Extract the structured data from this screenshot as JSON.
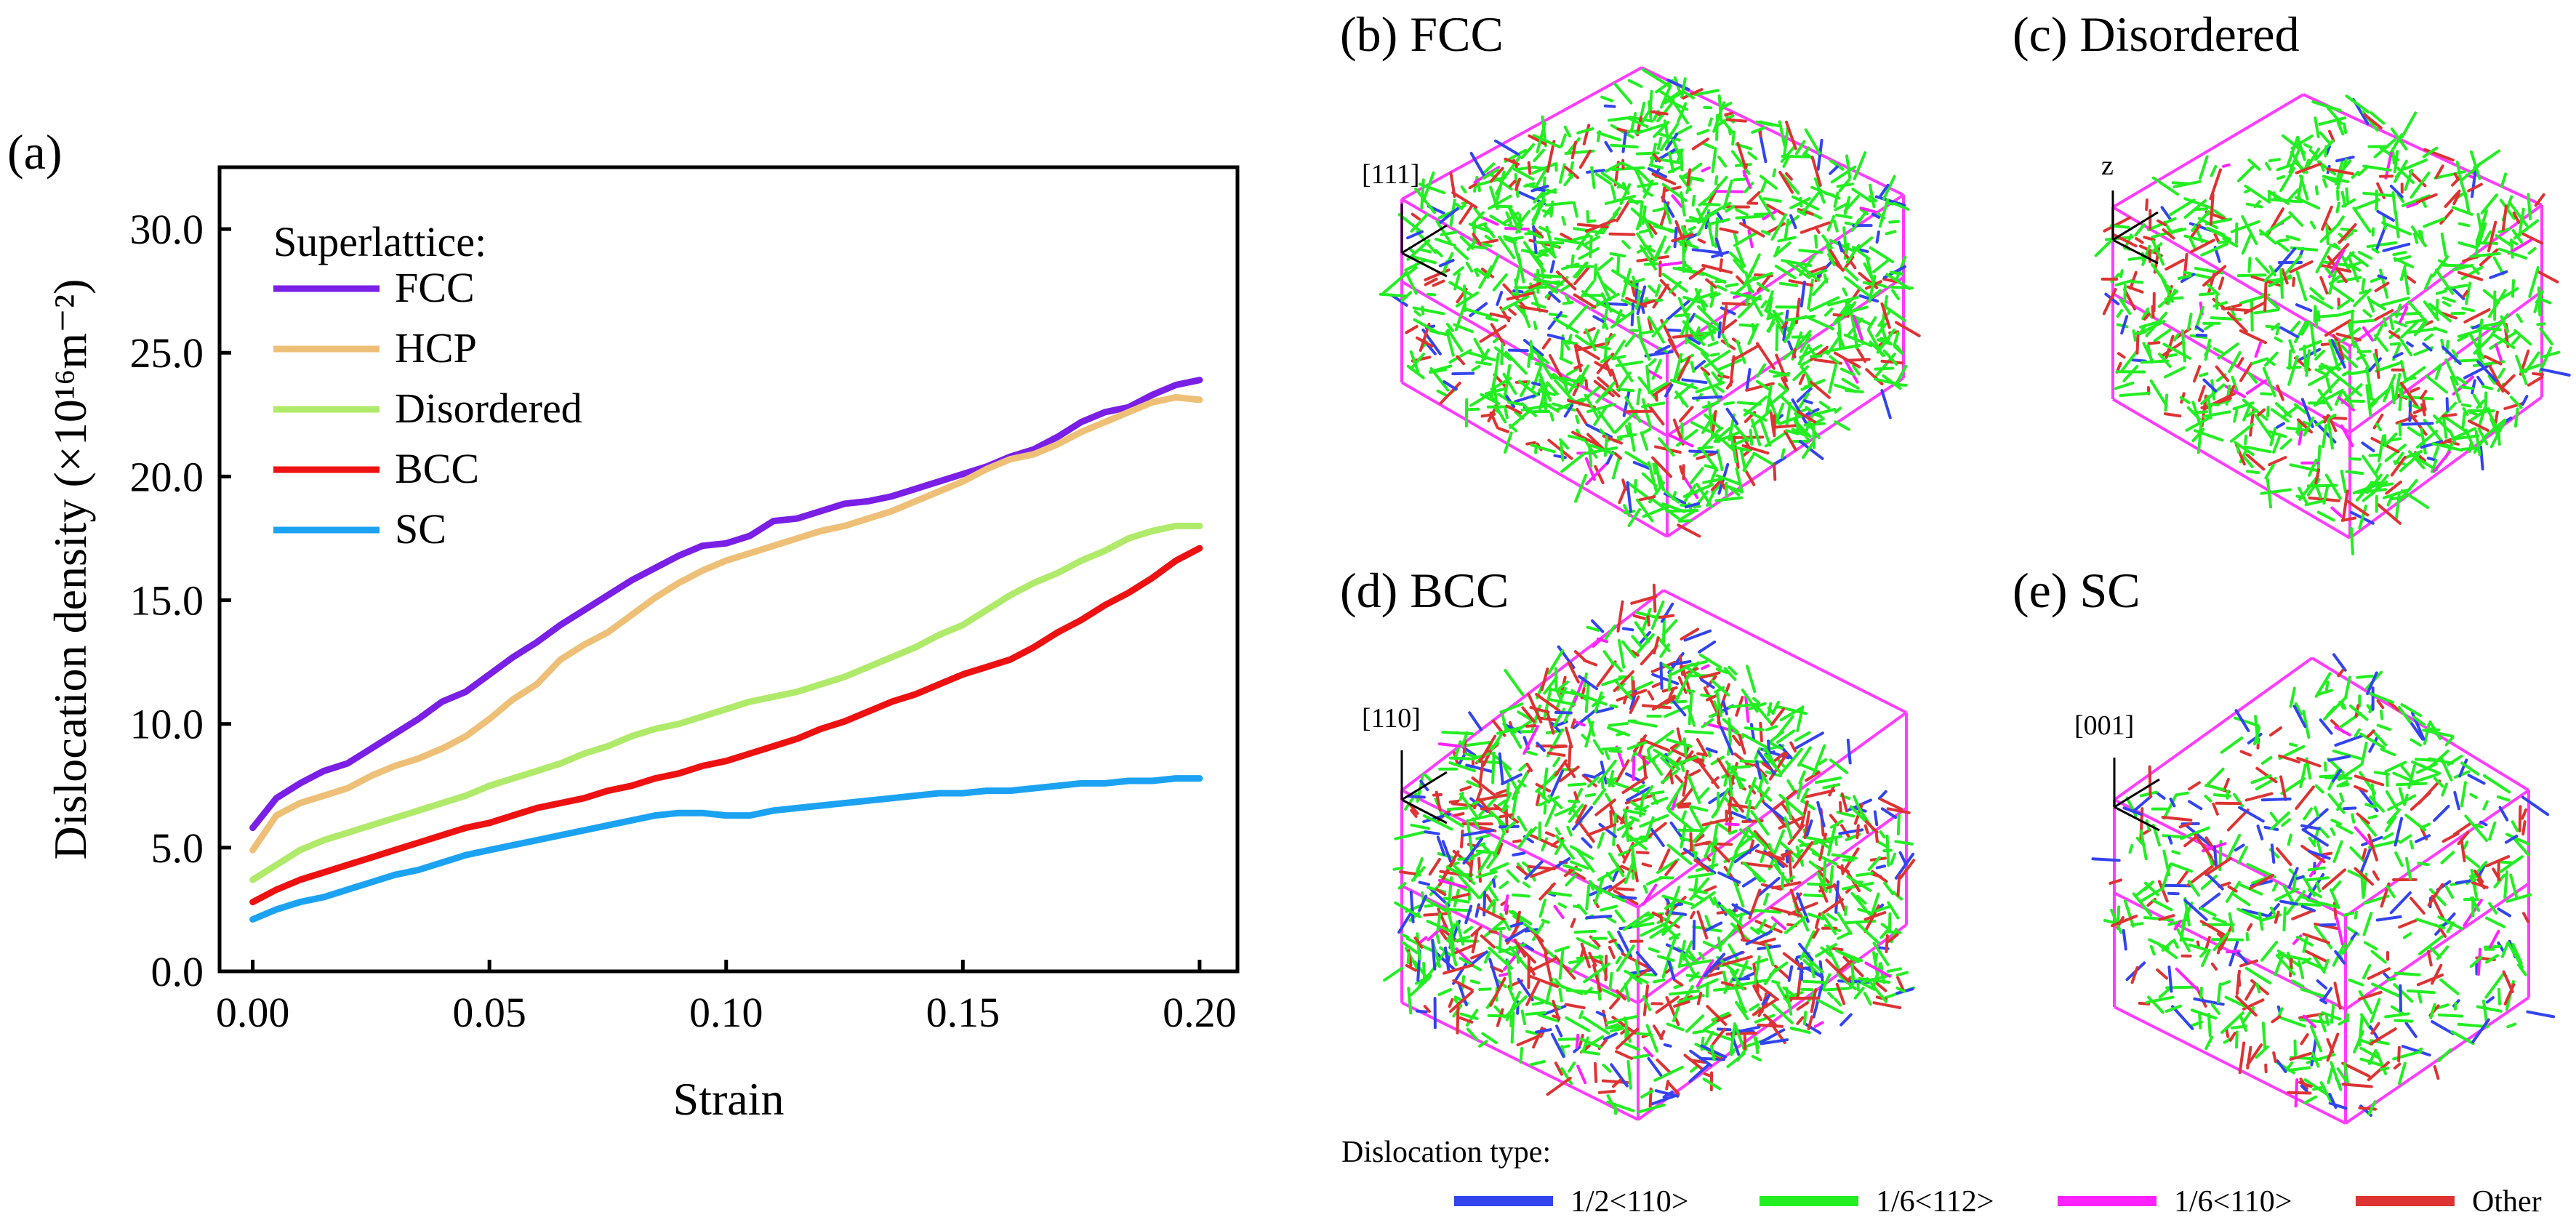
{
  "chart_data": {
    "type": "line",
    "panel_label": "(a)",
    "xlabel": "Strain",
    "ylabel": "Dislocation density (×10¹⁶m⁻²)",
    "xlim": [
      -0.007,
      0.208
    ],
    "ylim": [
      0,
      32.5
    ],
    "xticks": [
      0.0,
      0.05,
      0.1,
      0.15,
      0.2
    ],
    "xtick_labels": [
      "0.00",
      "0.05",
      "0.10",
      "0.15",
      "0.20"
    ],
    "yticks": [
      0,
      5,
      10,
      15,
      20,
      25,
      30
    ],
    "ytick_labels": [
      "0.0",
      "5.0",
      "10.0",
      "15.0",
      "20.0",
      "25.0",
      "30.0"
    ],
    "legend_title": "Superlattice:",
    "legend_position": "top-left",
    "x": [
      0.0,
      0.005,
      0.01,
      0.015,
      0.02,
      0.025,
      0.03,
      0.035,
      0.04,
      0.045,
      0.05,
      0.055,
      0.06,
      0.065,
      0.07,
      0.075,
      0.08,
      0.085,
      0.09,
      0.095,
      0.1,
      0.105,
      0.11,
      0.115,
      0.12,
      0.125,
      0.13,
      0.135,
      0.14,
      0.145,
      0.15,
      0.155,
      0.16,
      0.165,
      0.17,
      0.175,
      0.18,
      0.185,
      0.19,
      0.195,
      0.2
    ],
    "series": [
      {
        "name": "FCC",
        "color": "#7a1fe6",
        "values": [
          5.8,
          7.0,
          7.6,
          8.1,
          8.4,
          9.0,
          9.6,
          10.2,
          10.9,
          11.3,
          12.0,
          12.7,
          13.3,
          14.0,
          14.6,
          15.2,
          15.8,
          16.3,
          16.8,
          17.2,
          17.3,
          17.6,
          18.2,
          18.3,
          18.6,
          18.9,
          19.0,
          19.2,
          19.5,
          19.8,
          20.1,
          20.4,
          20.8,
          21.1,
          21.6,
          22.2,
          22.6,
          22.8,
          23.3,
          23.7,
          23.9
        ]
      },
      {
        "name": "HCP",
        "color": "#eec077",
        "values": [
          4.9,
          6.3,
          6.8,
          7.1,
          7.4,
          7.9,
          8.3,
          8.6,
          9.0,
          9.5,
          10.2,
          11.0,
          11.6,
          12.6,
          13.2,
          13.7,
          14.4,
          15.1,
          15.7,
          16.2,
          16.6,
          16.9,
          17.2,
          17.5,
          17.8,
          18.0,
          18.3,
          18.6,
          19.0,
          19.4,
          19.8,
          20.3,
          20.7,
          20.9,
          21.3,
          21.8,
          22.2,
          22.6,
          23.0,
          23.2,
          23.1
        ]
      },
      {
        "name": "Disordered",
        "color": "#b0ea6a",
        "values": [
          3.7,
          4.3,
          4.9,
          5.3,
          5.6,
          5.9,
          6.2,
          6.5,
          6.8,
          7.1,
          7.5,
          7.8,
          8.1,
          8.4,
          8.8,
          9.1,
          9.5,
          9.8,
          10.0,
          10.3,
          10.6,
          10.9,
          11.1,
          11.3,
          11.6,
          11.9,
          12.3,
          12.7,
          13.1,
          13.6,
          14.0,
          14.6,
          15.2,
          15.7,
          16.1,
          16.6,
          17.0,
          17.5,
          17.8,
          18.0,
          18.0
        ]
      },
      {
        "name": "BCC",
        "color": "#ee1111",
        "values": [
          2.8,
          3.3,
          3.7,
          4.0,
          4.3,
          4.6,
          4.9,
          5.2,
          5.5,
          5.8,
          6.0,
          6.3,
          6.6,
          6.8,
          7.0,
          7.3,
          7.5,
          7.8,
          8.0,
          8.3,
          8.5,
          8.8,
          9.1,
          9.4,
          9.8,
          10.1,
          10.5,
          10.9,
          11.2,
          11.6,
          12.0,
          12.3,
          12.6,
          13.1,
          13.7,
          14.2,
          14.8,
          15.3,
          15.9,
          16.6,
          17.1
        ]
      },
      {
        "name": "SC",
        "color": "#1ca2f3",
        "values": [
          2.1,
          2.5,
          2.8,
          3.0,
          3.3,
          3.6,
          3.9,
          4.1,
          4.4,
          4.7,
          4.9,
          5.1,
          5.3,
          5.5,
          5.7,
          5.9,
          6.1,
          6.3,
          6.4,
          6.4,
          6.3,
          6.3,
          6.5,
          6.6,
          6.7,
          6.8,
          6.9,
          7.0,
          7.1,
          7.2,
          7.2,
          7.3,
          7.3,
          7.4,
          7.5,
          7.6,
          7.6,
          7.7,
          7.7,
          7.8,
          7.8
        ]
      }
    ]
  },
  "panels": {
    "b": {
      "label": "(b) FCC",
      "direction": "[111]"
    },
    "c": {
      "label": "(c) Disordered",
      "direction": "z"
    },
    "d": {
      "label": "(d) BCC",
      "direction": "[110]"
    },
    "e": {
      "label": "(e) SC",
      "direction": "[001]"
    }
  },
  "dislocation_legend": {
    "title": "Dislocation type:",
    "items": [
      {
        "label": "1/2<110>",
        "color": "#3344ee"
      },
      {
        "label": "1/6<112>",
        "color": "#22ee22"
      },
      {
        "label": "1/6<110>",
        "color": "#ff22ff"
      },
      {
        "label": "Other",
        "color": "#dd3333"
      }
    ]
  }
}
